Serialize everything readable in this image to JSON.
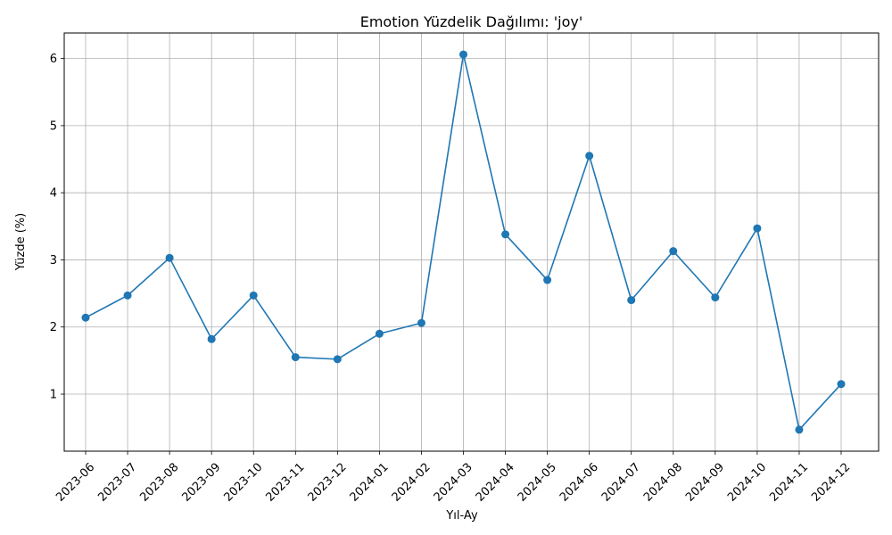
{
  "chart_data": {
    "type": "line",
    "title": "Emotion Yüzdelik Dağılımı: 'joy'",
    "xlabel": "Yıl-Ay",
    "ylabel": "Yüzde (%)",
    "categories": [
      "2023-06",
      "2023-07",
      "2023-08",
      "2023-09",
      "2023-10",
      "2023-11",
      "2023-12",
      "2024-01",
      "2024-02",
      "2024-03",
      "2024-04",
      "2024-05",
      "2024-06",
      "2024-07",
      "2024-08",
      "2024-09",
      "2024-10",
      "2024-11",
      "2024-12"
    ],
    "series": [
      {
        "values": [
          2.14,
          2.47,
          3.03,
          1.82,
          2.47,
          1.55,
          1.52,
          1.9,
          2.06,
          6.06,
          3.38,
          2.7,
          4.55,
          2.4,
          3.13,
          2.44,
          3.47,
          0.47,
          1.15
        ]
      }
    ],
    "ylim": [
      0.15,
      6.38
    ],
    "yticks": [
      1,
      2,
      3,
      4,
      5,
      6
    ],
    "grid": true,
    "line_color": "#1f77b4"
  }
}
